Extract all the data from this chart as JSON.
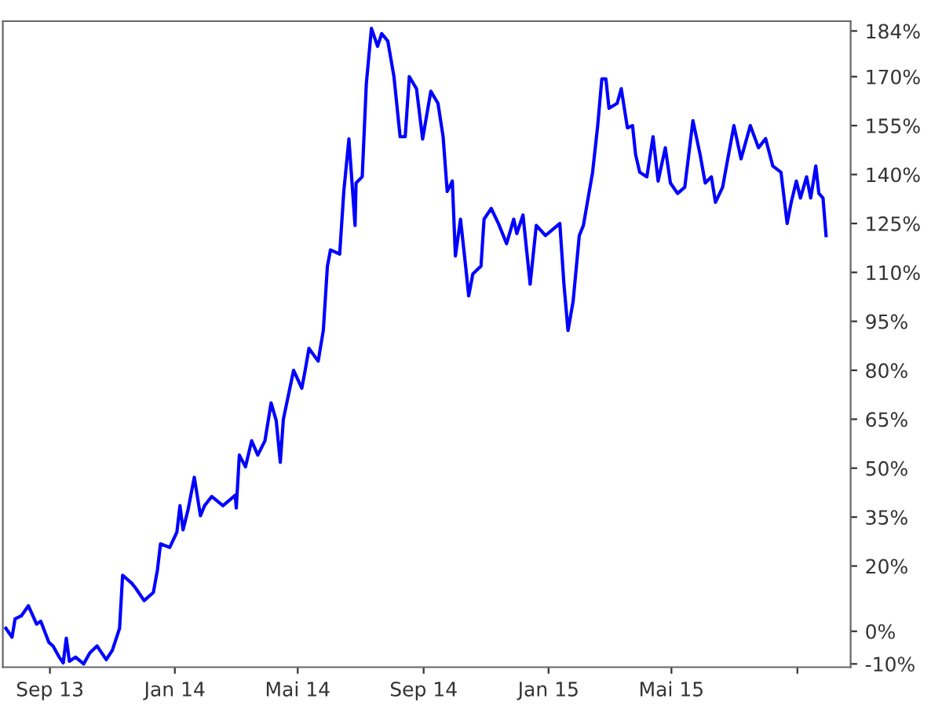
{
  "chart_data": {
    "type": "line",
    "x": [
      "2013-07-20",
      "2013-07-26",
      "2013-07-29",
      "2013-08-04",
      "2013-08-11",
      "2013-08-19",
      "2013-08-23",
      "2013-08-31",
      "2013-09-04",
      "2013-09-10",
      "2013-09-14",
      "2013-09-17",
      "2013-09-20",
      "2013-09-26",
      "2013-10-04",
      "2013-10-10",
      "2013-10-17",
      "2013-10-26",
      "2013-11-01",
      "2013-11-08",
      "2013-11-11",
      "2013-11-20",
      "2013-11-24",
      "2013-12-02",
      "2013-12-11",
      "2013-12-15",
      "2013-12-18",
      "2013-12-27",
      "2014-01-03",
      "2014-01-06",
      "2014-01-09",
      "2014-01-14",
      "2014-01-20",
      "2014-01-26",
      "2014-01-30",
      "2014-02-06",
      "2014-02-17",
      "2014-03-01",
      "2014-03-02",
      "2014-03-05",
      "2014-03-11",
      "2014-03-17",
      "2014-03-23",
      "2014-03-30",
      "2014-04-05",
      "2014-04-10",
      "2014-04-14",
      "2014-04-17",
      "2014-04-27",
      "2014-05-05",
      "2014-05-08",
      "2014-05-12",
      "2014-05-21",
      "2014-05-26",
      "2014-05-30",
      "2014-06-02",
      "2014-06-11",
      "2014-06-15",
      "2014-06-20",
      "2014-06-26",
      "2014-06-27",
      "2014-07-03",
      "2014-07-07",
      "2014-07-12",
      "2014-07-18",
      "2014-07-22",
      "2014-07-28",
      "2014-08-03",
      "2014-08-09",
      "2014-08-14",
      "2014-08-18",
      "2014-08-25",
      "2014-08-31",
      "2014-09-08",
      "2014-09-15",
      "2014-09-20",
      "2014-09-24",
      "2014-09-29",
      "2014-10-02",
      "2014-10-07",
      "2014-10-12",
      "2014-10-15",
      "2014-10-19",
      "2014-10-27",
      "2014-10-30",
      "2014-11-06",
      "2014-11-13",
      "2014-11-21",
      "2014-11-28",
      "2014-12-01",
      "2014-12-07",
      "2014-12-14",
      "2014-12-20",
      "2014-12-29",
      "2015-01-12",
      "2015-01-16",
      "2015-01-20",
      "2015-01-25",
      "2015-01-31",
      "2015-02-04",
      "2015-02-13",
      "2015-02-18",
      "2015-02-22",
      "2015-02-26",
      "2015-03-01",
      "2015-03-09",
      "2015-03-13",
      "2015-03-19",
      "2015-03-24",
      "2015-03-27",
      "2015-03-31",
      "2015-04-07",
      "2015-04-13",
      "2015-04-18",
      "2015-04-25",
      "2015-04-30",
      "2015-05-07",
      "2015-05-14",
      "2015-05-22",
      "2015-05-29",
      "2015-06-03",
      "2015-06-09",
      "2015-06-13",
      "2015-06-20",
      "2015-06-25",
      "2015-07-01",
      "2015-07-08",
      "2015-07-17",
      "2015-07-25",
      "2015-08-01",
      "2015-08-08",
      "2015-08-16",
      "2015-08-22",
      "2015-08-26",
      "2015-08-31",
      "2015-09-04",
      "2015-09-10",
      "2015-09-14",
      "2015-09-19",
      "2015-09-22",
      "2015-09-26",
      "2015-09-29"
    ],
    "series": [
      {
        "color": "#0000ff",
        "values": [
          0.9,
          -1.8,
          3.8,
          4.7,
          7.8,
          2.2,
          3.1,
          -3.4,
          -4.5,
          -7.9,
          -9.7,
          -2.1,
          -9.2,
          -7.9,
          -10.0,
          -6.6,
          -4.5,
          -8.7,
          -5.8,
          0.9,
          17.2,
          14.7,
          13.1,
          9.4,
          11.9,
          18.8,
          26.8,
          25.7,
          30.4,
          38.5,
          31.1,
          37.4,
          47.2,
          35.4,
          38.5,
          41.3,
          38.5,
          41.7,
          37.8,
          54.0,
          50.4,
          58.4,
          54.0,
          58.4,
          70.0,
          64.6,
          51.8,
          65.0,
          80.0,
          74.5,
          79.5,
          86.7,
          82.8,
          92.2,
          111.9,
          116.9,
          115.6,
          134.8,
          150.9,
          124.4,
          137.4,
          139.3,
          167.8,
          184.8,
          179.3,
          183.2,
          180.9,
          170.0,
          151.6,
          151.6,
          170.0,
          166.3,
          150.9,
          165.5,
          161.8,
          151.6,
          134.8,
          138.0,
          115.0,
          126.3,
          111.9,
          102.8,
          109.5,
          111.9,
          126.3,
          129.6,
          125.0,
          118.8,
          126.3,
          121.9,
          127.6,
          106.4,
          124.4,
          121.3,
          125.0,
          106.4,
          92.2,
          101.2,
          121.3,
          124.4,
          140.7,
          155.0,
          169.3,
          169.3,
          160.3,
          161.8,
          166.3,
          154.3,
          155.0,
          146.1,
          140.7,
          139.3,
          151.6,
          138.0,
          148.2,
          137.4,
          134.2,
          136.1,
          156.5,
          146.1,
          137.4,
          139.3,
          131.5,
          136.1,
          144.8,
          155.0,
          144.8,
          155.0,
          148.2,
          151.0,
          142.6,
          140.7,
          125.0,
          131.5,
          138.0,
          132.8,
          139.3,
          132.8,
          142.6,
          134.2,
          132.8,
          121.3
        ]
      }
    ],
    "xlim": [
      "2013-07-17",
      "2015-10-23"
    ],
    "xticks": [
      {
        "value": "2013-09-01",
        "label": "Sep 13"
      },
      {
        "value": "2014-01-01",
        "label": "Jan 14"
      },
      {
        "value": "2014-05-01",
        "label": "Mai 14"
      },
      {
        "value": "2014-09-01",
        "label": "Sep 14"
      },
      {
        "value": "2015-01-01",
        "label": "Jan 15"
      },
      {
        "value": "2015-05-01",
        "label": "Mai 15"
      },
      {
        "value": "2015-09-01",
        "label": null
      }
    ],
    "ylim": [
      -11,
      187
    ],
    "yticks": [
      {
        "value": -10,
        "label": "-10%"
      },
      {
        "value": 0,
        "label": "0%"
      },
      {
        "value": 20,
        "label": "20%"
      },
      {
        "value": 35,
        "label": "35%"
      },
      {
        "value": 50,
        "label": "50%"
      },
      {
        "value": 65,
        "label": "65%"
      },
      {
        "value": 80,
        "label": "80%"
      },
      {
        "value": 95,
        "label": "95%"
      },
      {
        "value": 110,
        "label": "110%"
      },
      {
        "value": 125,
        "label": "125%"
      },
      {
        "value": 140,
        "label": "140%"
      },
      {
        "value": 155,
        "label": "155%"
      },
      {
        "value": 170,
        "label": "170%"
      },
      {
        "value": 184,
        "label": "184%"
      }
    ],
    "grid": false,
    "legend": false,
    "marker": "none",
    "line_style": "solid"
  }
}
